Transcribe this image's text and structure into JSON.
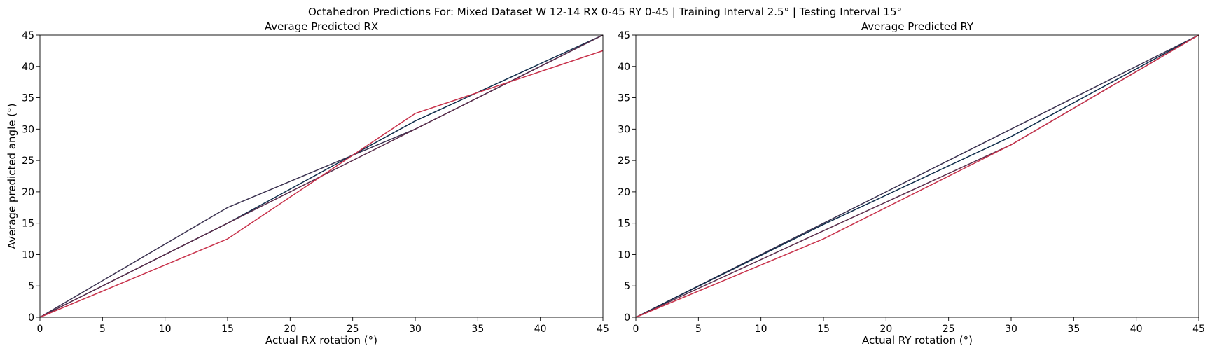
{
  "figure": {
    "suptitle": "Octahedron Predictions For: Mixed Dataset W 12-14 RX 0-45 RY 0-45 | Training Interval 2.5° | Testing Interval 15°"
  },
  "chart_data": [
    {
      "type": "line",
      "title": "Average Predicted RX",
      "xlabel": "Actual RX rotation (°)",
      "ylabel": "Average predicted angle (°)",
      "xlim": [
        0,
        45
      ],
      "ylim": [
        0,
        45
      ],
      "xticks": [
        "0",
        "5",
        "10",
        "15",
        "20",
        "25",
        "30",
        "35",
        "40",
        "45"
      ],
      "yticks": [
        "0",
        "5",
        "10",
        "15",
        "20",
        "25",
        "30",
        "35",
        "40",
        "45"
      ],
      "grid": false,
      "series": [
        {
          "color": "#3b3250",
          "x": [
            0,
            15,
            30,
            45
          ],
          "y": [
            0,
            17.5,
            30,
            45
          ]
        },
        {
          "color": "#0f2d4b",
          "x": [
            0,
            15,
            30,
            45
          ],
          "y": [
            0,
            15,
            31.3,
            45
          ]
        },
        {
          "color": "#5a2d4b",
          "x": [
            0,
            15,
            30,
            45
          ],
          "y": [
            0,
            15,
            30,
            45
          ]
        },
        {
          "color": "#c8324b",
          "x": [
            0,
            15,
            22.5,
            30,
            37.5,
            45
          ],
          "y": [
            0,
            12.5,
            22.5,
            32.5,
            37.5,
            42.5
          ]
        }
      ]
    },
    {
      "type": "line",
      "title": "Average Predicted RY",
      "xlabel": "Actual RY rotation (°)",
      "ylabel": "",
      "xlim": [
        0,
        45
      ],
      "ylim": [
        0,
        45
      ],
      "xticks": [
        "0",
        "5",
        "10",
        "15",
        "20",
        "25",
        "30",
        "35",
        "40",
        "45"
      ],
      "yticks": [
        "0",
        "5",
        "10",
        "15",
        "20",
        "25",
        "30",
        "35",
        "40",
        "45"
      ],
      "grid": false,
      "series": [
        {
          "color": "#3b3250",
          "x": [
            0,
            15,
            30,
            45
          ],
          "y": [
            0,
            15,
            30,
            45
          ]
        },
        {
          "color": "#0f2d4b",
          "x": [
            0,
            15,
            30,
            45
          ],
          "y": [
            0,
            14.8,
            28.8,
            45
          ]
        },
        {
          "color": "#5a2d4b",
          "x": [
            0,
            15,
            30,
            45
          ],
          "y": [
            0,
            13.8,
            27.5,
            45
          ]
        },
        {
          "color": "#c8324b",
          "x": [
            0,
            15,
            30,
            45
          ],
          "y": [
            0,
            12.5,
            27.5,
            45
          ]
        }
      ]
    }
  ]
}
